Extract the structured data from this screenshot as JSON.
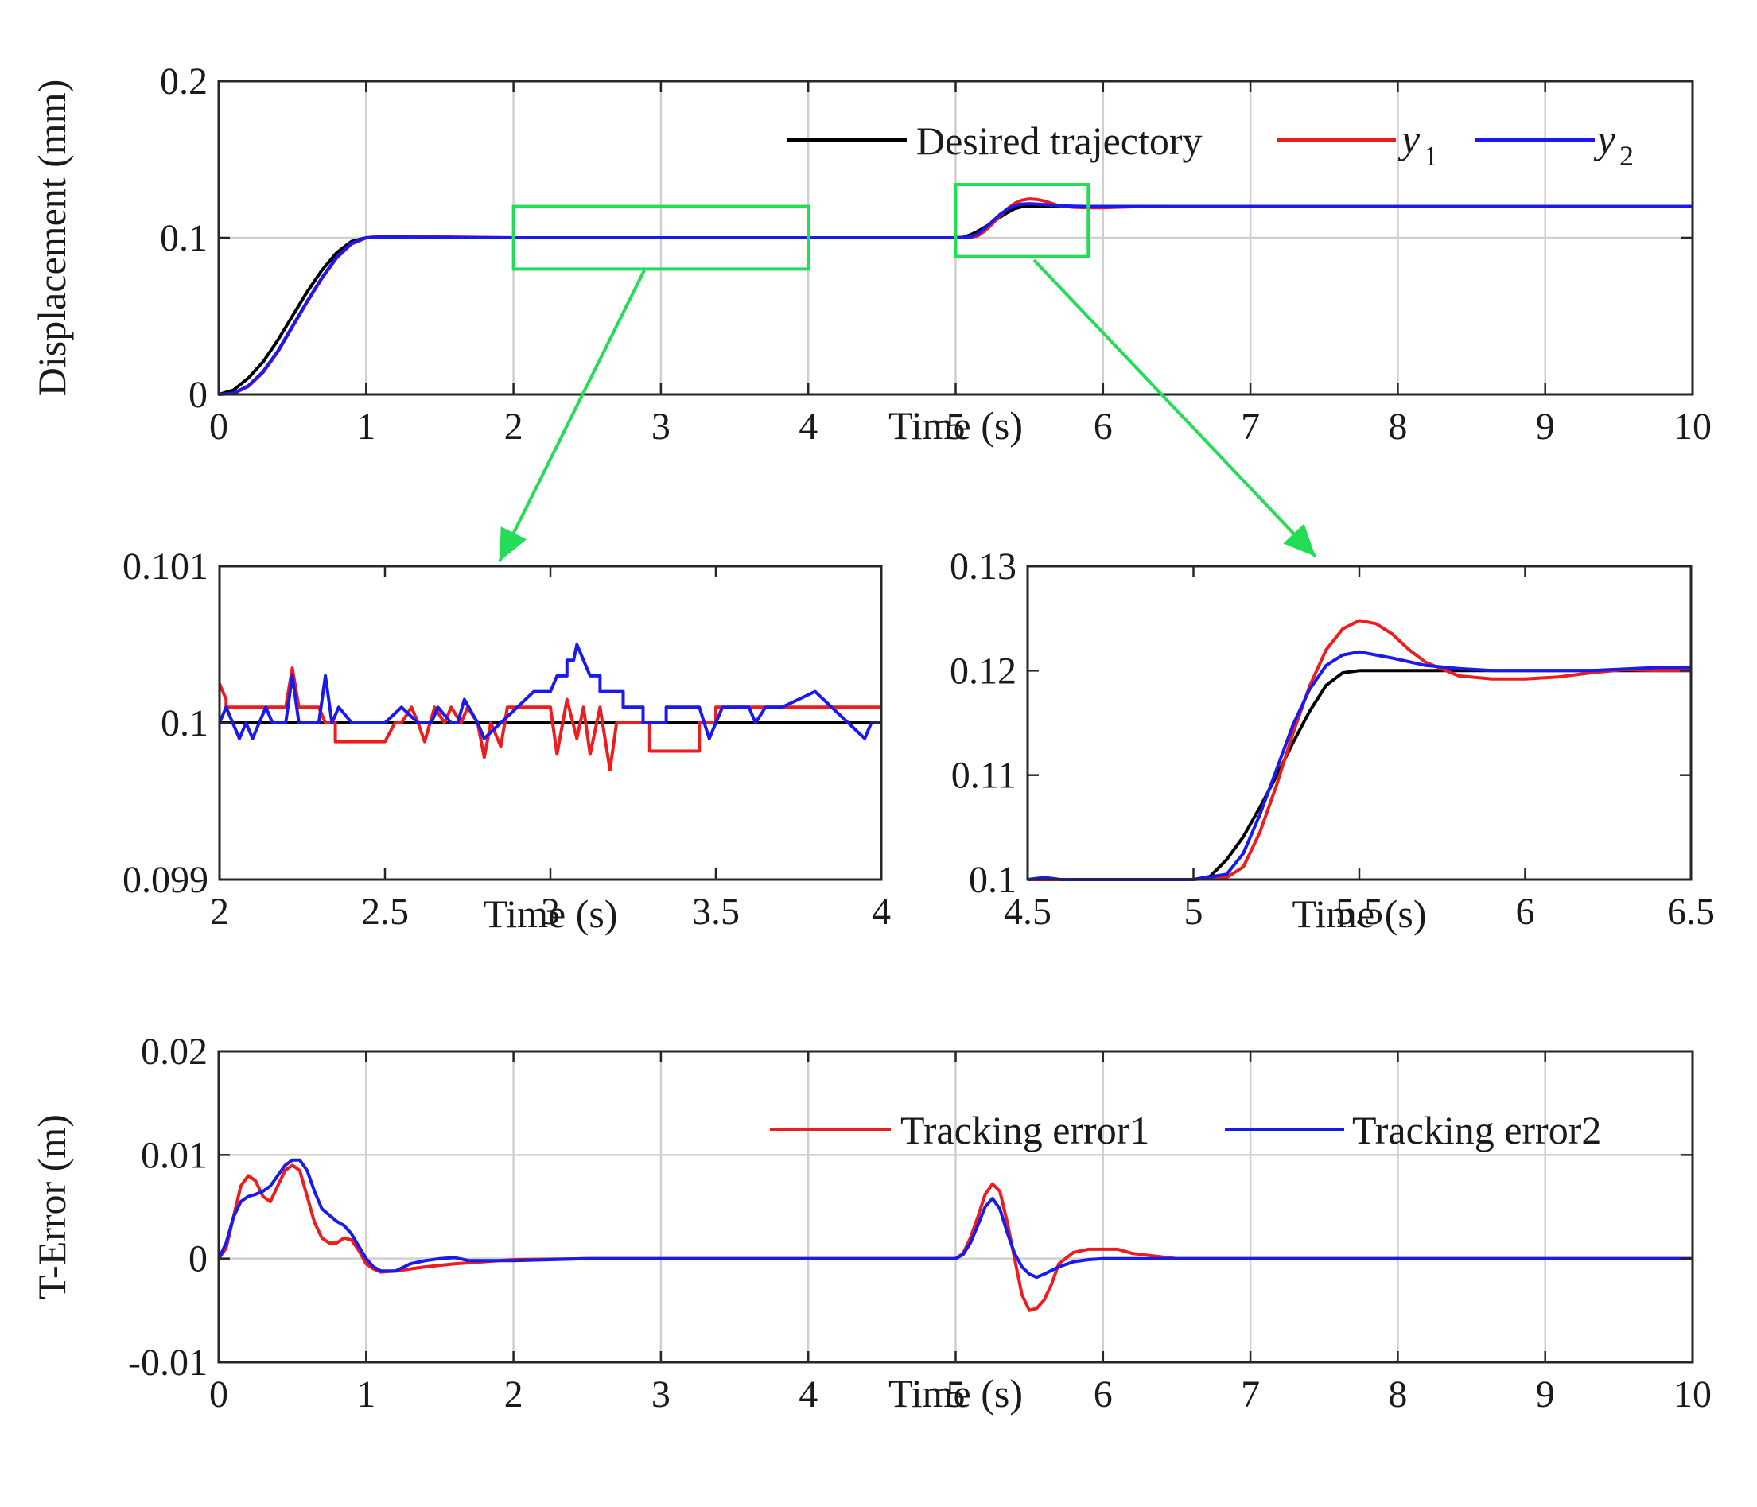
{
  "colors": {
    "desired": "#000000",
    "y1": "#ee1c1c",
    "y2": "#1a1aee",
    "zoom": "#22dd55"
  },
  "chart_data": [
    {
      "id": "main",
      "type": "line",
      "xlabel": "Time (s)",
      "ylabel": "Displacement (mm)",
      "xlim": [
        0,
        10
      ],
      "ylim": [
        0,
        0.2
      ],
      "xticks": [
        "0",
        "1",
        "2",
        "3",
        "4",
        "5",
        "6",
        "7",
        "8",
        "9",
        "10"
      ],
      "yticks": [
        "0",
        "0.1",
        "0.2"
      ],
      "grid": true,
      "legend": {
        "position": "top-right",
        "entries": [
          {
            "label": "Desired trajectory",
            "sym": "",
            "sub": ""
          },
          {
            "label": "",
            "sym": "y",
            "sub": "1"
          },
          {
            "label": "",
            "sym": "y",
            "sub": "2"
          }
        ]
      },
      "zoom_boxes": [
        {
          "x": [
            2,
            4
          ],
          "y": [
            0.08,
            0.12
          ]
        },
        {
          "x": [
            5,
            5.9
          ],
          "y": [
            0.088,
            0.134
          ]
        }
      ],
      "series": [
        {
          "name": "Desired trajectory",
          "x": [
            0,
            0.1,
            0.2,
            0.3,
            0.4,
            0.5,
            0.6,
            0.7,
            0.8,
            0.9,
            1.0,
            2,
            3,
            4,
            5,
            5.05,
            5.1,
            5.15,
            5.2,
            5.25,
            5.3,
            5.35,
            5.4,
            5.45,
            5.5,
            10
          ],
          "y": [
            0,
            0.0028,
            0.0104,
            0.0207,
            0.0345,
            0.05,
            0.0655,
            0.0793,
            0.0904,
            0.0976,
            0.1,
            0.1,
            0.1,
            0.1,
            0.1,
            0.1003,
            0.1019,
            0.1041,
            0.1069,
            0.1099,
            0.1131,
            0.1161,
            0.1186,
            0.1198,
            0.12,
            0.12
          ]
        },
        {
          "name": "y1",
          "x": [
            0,
            0.1,
            0.2,
            0.3,
            0.4,
            0.5,
            0.6,
            0.7,
            0.8,
            0.9,
            1.0,
            1.1,
            2,
            3,
            4,
            5,
            5.1,
            5.15,
            5.2,
            5.25,
            5.3,
            5.35,
            5.4,
            5.45,
            5.5,
            5.55,
            5.6,
            5.7,
            5.8,
            5.9,
            6.0,
            6.2,
            6.5,
            10
          ],
          "y": [
            0,
            0.0005,
            0.005,
            0.014,
            0.027,
            0.043,
            0.059,
            0.074,
            0.087,
            0.096,
            0.1,
            0.101,
            0.1,
            0.1,
            0.1,
            0.1,
            0.1003,
            0.1012,
            0.1045,
            0.109,
            0.114,
            0.1185,
            0.122,
            0.124,
            0.1248,
            0.1245,
            0.1235,
            0.1205,
            0.1195,
            0.1192,
            0.1192,
            0.1198,
            0.12,
            0.12
          ]
        },
        {
          "name": "y2",
          "x": [
            0,
            0.1,
            0.2,
            0.3,
            0.4,
            0.5,
            0.6,
            0.7,
            0.8,
            0.9,
            1.0,
            1.1,
            2,
            3,
            4,
            5,
            5.1,
            5.15,
            5.2,
            5.25,
            5.3,
            5.35,
            5.4,
            5.45,
            5.5,
            5.55,
            5.6,
            5.7,
            5.8,
            5.9,
            6.0,
            6.5,
            10
          ],
          "y": [
            0,
            0.0008,
            0.0055,
            0.0145,
            0.0275,
            0.0435,
            0.0595,
            0.0745,
            0.0875,
            0.0965,
            0.1,
            0.1005,
            0.1,
            0.1,
            0.1,
            0.1,
            0.1005,
            0.1025,
            0.1062,
            0.1105,
            0.1148,
            0.1182,
            0.1205,
            0.1215,
            0.1218,
            0.1215,
            0.1212,
            0.1205,
            0.1202,
            0.12,
            0.12,
            0.12,
            0.12
          ]
        }
      ]
    },
    {
      "id": "zoom1",
      "type": "line",
      "xlabel": "Time (s)",
      "ylabel": "",
      "xlim": [
        2,
        4
      ],
      "ylim": [
        0.099,
        0.101
      ],
      "xticks": [
        "2",
        "2.5",
        "3",
        "3.5",
        "4"
      ],
      "yticks": [
        "0.099",
        "0.1",
        "0.101"
      ],
      "grid": false,
      "series": [
        {
          "name": "Desired trajectory",
          "x": [
            2,
            4
          ],
          "y": [
            0.1,
            0.1
          ]
        },
        {
          "name": "y1",
          "x": [
            2,
            2.02,
            2.02,
            2.1,
            2.2,
            2.22,
            2.24,
            2.3,
            2.32,
            2.34,
            2.35,
            2.35,
            2.5,
            2.53,
            2.55,
            2.58,
            2.6,
            2.62,
            2.65,
            2.68,
            2.7,
            2.73,
            2.75,
            2.78,
            2.8,
            2.82,
            2.85,
            2.87,
            2.9,
            2.95,
            3.0,
            3.02,
            3.05,
            3.08,
            3.1,
            3.12,
            3.15,
            3.18,
            3.2,
            3.3,
            3.3,
            3.45,
            3.45,
            3.5,
            3.5,
            3.65,
            3.7,
            3.8,
            4
          ],
          "y": [
            0.10025,
            0.10015,
            0.1001,
            0.1001,
            0.1001,
            0.10035,
            0.1001,
            0.1001,
            0.1,
            0.1,
            0.1,
            0.09988,
            0.09988,
            0.1,
            0.1,
            0.1001,
            0.1,
            0.09988,
            0.1001,
            0.1,
            0.1001,
            0.1,
            0.1001,
            0.1,
            0.09978,
            0.1,
            0.09985,
            0.1001,
            0.1001,
            0.1001,
            0.1001,
            0.0998,
            0.10015,
            0.0999,
            0.1001,
            0.0998,
            0.1001,
            0.0997,
            0.1,
            0.1,
            0.09982,
            0.09982,
            0.1,
            0.1,
            0.1001,
            0.1001,
            0.1001,
            0.1001,
            0.1001
          ]
        },
        {
          "name": "y2",
          "x": [
            2,
            2.02,
            2.04,
            2.06,
            2.08,
            2.1,
            2.12,
            2.14,
            2.16,
            2.2,
            2.22,
            2.24,
            2.3,
            2.32,
            2.34,
            2.36,
            2.4,
            2.42,
            2.5,
            2.55,
            2.6,
            2.64,
            2.66,
            2.7,
            2.72,
            2.74,
            2.78,
            2.8,
            2.85,
            2.9,
            2.95,
            3.0,
            3.02,
            3.05,
            3.05,
            3.07,
            3.08,
            3.1,
            3.12,
            3.15,
            3.15,
            3.22,
            3.22,
            3.28,
            3.28,
            3.35,
            3.35,
            3.45,
            3.48,
            3.5,
            3.52,
            3.6,
            3.62,
            3.65,
            3.7,
            3.8,
            3.85,
            3.9,
            3.95,
            3.97,
            4
          ],
          "y": [
            0.1,
            0.1001,
            0.1,
            0.0999,
            0.1,
            0.0999,
            0.1,
            0.1001,
            0.1,
            0.1,
            0.1003,
            0.1,
            0.1,
            0.1003,
            0.1,
            0.1001,
            0.1,
            0.1,
            0.1,
            0.1001,
            0.1,
            0.1,
            0.1001,
            0.1,
            0.1,
            0.10015,
            0.1,
            0.0999,
            0.1,
            0.1001,
            0.1002,
            0.1002,
            0.1003,
            0.1003,
            0.1004,
            0.1004,
            0.1005,
            0.1004,
            0.1003,
            0.1003,
            0.1002,
            0.1002,
            0.1001,
            0.1001,
            0.1,
            0.1,
            0.1001,
            0.1001,
            0.0999,
            0.1,
            0.1001,
            0.1001,
            0.1,
            0.1001,
            0.1001,
            0.1002,
            0.1001,
            0.1,
            0.0999,
            0.1,
            0.1
          ]
        }
      ]
    },
    {
      "id": "zoom2",
      "type": "line",
      "xlabel": "Time (s)",
      "ylabel": "",
      "xlim": [
        4.5,
        6.5
      ],
      "ylim": [
        0.1,
        0.13
      ],
      "xticks": [
        "4.5",
        "5",
        "5.5",
        "6",
        "6.5"
      ],
      "yticks": [
        "0.1",
        "0.11",
        "0.12",
        "0.13"
      ],
      "grid": false,
      "series": [
        {
          "name": "Desired trajectory",
          "x": [
            4.5,
            5.0,
            5.05,
            5.1,
            5.15,
            5.2,
            5.25,
            5.3,
            5.35,
            5.4,
            5.45,
            5.5,
            6.5
          ],
          "y": [
            0.1,
            0.1,
            0.1003,
            0.1019,
            0.1041,
            0.1069,
            0.1099,
            0.1131,
            0.1161,
            0.1186,
            0.1198,
            0.12,
            0.12
          ]
        },
        {
          "name": "y1",
          "x": [
            4.5,
            4.6,
            5.0,
            5.1,
            5.15,
            5.2,
            5.25,
            5.3,
            5.35,
            5.4,
            5.45,
            5.5,
            5.55,
            5.6,
            5.65,
            5.7,
            5.8,
            5.9,
            6.0,
            6.1,
            6.2,
            6.3,
            6.4,
            6.5
          ],
          "y": [
            0.1,
            0.1,
            0.1,
            0.1002,
            0.1012,
            0.1045,
            0.109,
            0.114,
            0.1185,
            0.122,
            0.124,
            0.1248,
            0.1245,
            0.1235,
            0.122,
            0.1208,
            0.1195,
            0.1192,
            0.1192,
            0.1194,
            0.1198,
            0.1201,
            0.12,
            0.12
          ]
        },
        {
          "name": "y2",
          "x": [
            4.5,
            4.55,
            4.6,
            5.0,
            5.1,
            5.15,
            5.2,
            5.25,
            5.3,
            5.35,
            5.4,
            5.45,
            5.5,
            5.55,
            5.6,
            5.7,
            5.8,
            5.9,
            6.0,
            6.2,
            6.4,
            6.5
          ],
          "y": [
            0.1,
            0.1002,
            0.1,
            0.1,
            0.1005,
            0.1025,
            0.1062,
            0.1105,
            0.1148,
            0.1182,
            0.1205,
            0.1215,
            0.1218,
            0.1215,
            0.1212,
            0.1205,
            0.1202,
            0.12,
            0.12,
            0.12,
            0.1203,
            0.1203
          ]
        }
      ]
    },
    {
      "id": "error",
      "type": "line",
      "xlabel": "Time (s)",
      "ylabel": "T-Error (m)",
      "xlim": [
        0,
        10
      ],
      "ylim": [
        -0.01,
        0.02
      ],
      "xticks": [
        "0",
        "1",
        "2",
        "3",
        "4",
        "5",
        "6",
        "7",
        "8",
        "9",
        "10"
      ],
      "yticks": [
        "-0.01",
        "0",
        "0.01",
        "0.02"
      ],
      "grid": true,
      "legend": {
        "position": "top-right",
        "entries": [
          {
            "label": "Tracking error1",
            "sym": "",
            "sub": ""
          },
          {
            "label": "Tracking error2",
            "sym": "",
            "sub": ""
          }
        ]
      },
      "series": [
        {
          "name": "Tracking error1",
          "x": [
            0,
            0.05,
            0.1,
            0.15,
            0.2,
            0.25,
            0.3,
            0.35,
            0.4,
            0.45,
            0.5,
            0.55,
            0.6,
            0.65,
            0.7,
            0.75,
            0.8,
            0.85,
            0.9,
            0.95,
            1.0,
            1.05,
            1.1,
            1.2,
            1.4,
            1.6,
            1.8,
            2.0,
            2.5,
            3.0,
            3.5,
            4.0,
            4.5,
            5.0,
            5.05,
            5.1,
            5.15,
            5.2,
            5.25,
            5.3,
            5.35,
            5.4,
            5.45,
            5.5,
            5.55,
            5.6,
            5.65,
            5.7,
            5.8,
            5.9,
            6.0,
            6.1,
            6.2,
            6.5,
            7,
            8,
            9,
            10
          ],
          "y": [
            0,
            0.001,
            0.004,
            0.007,
            0.008,
            0.0075,
            0.006,
            0.0055,
            0.007,
            0.0085,
            0.009,
            0.0085,
            0.006,
            0.0035,
            0.002,
            0.0015,
            0.0015,
            0.002,
            0.0018,
            0.0008,
            -0.0005,
            -0.001,
            -0.0013,
            -0.0012,
            -0.0008,
            -0.0005,
            -0.0003,
            -0.0001,
            0,
            0,
            0,
            0,
            0,
            0,
            0.0005,
            0.002,
            0.004,
            0.0062,
            0.0072,
            0.0065,
            0.0035,
            0,
            -0.0035,
            -0.005,
            -0.0048,
            -0.004,
            -0.0025,
            -0.0005,
            0.0006,
            0.0009,
            0.0009,
            0.0009,
            0.0005,
            0,
            0,
            0,
            0,
            0
          ]
        },
        {
          "name": "Tracking error2",
          "x": [
            0,
            0.05,
            0.1,
            0.15,
            0.2,
            0.25,
            0.3,
            0.35,
            0.4,
            0.45,
            0.5,
            0.55,
            0.6,
            0.65,
            0.7,
            0.75,
            0.8,
            0.85,
            0.9,
            0.95,
            1.0,
            1.05,
            1.1,
            1.2,
            1.3,
            1.4,
            1.5,
            1.6,
            1.7,
            2.0,
            2.5,
            3.0,
            3.5,
            4.0,
            4.5,
            5.0,
            5.05,
            5.1,
            5.15,
            5.2,
            5.25,
            5.3,
            5.35,
            5.4,
            5.45,
            5.5,
            5.55,
            5.6,
            5.7,
            5.8,
            5.9,
            6.0,
            6.5,
            7,
            8,
            9,
            10
          ],
          "y": [
            0,
            0.0015,
            0.004,
            0.0055,
            0.006,
            0.0062,
            0.0065,
            0.007,
            0.008,
            0.009,
            0.0095,
            0.0095,
            0.0085,
            0.0065,
            0.0048,
            0.0042,
            0.0036,
            0.0032,
            0.0024,
            0.0012,
            0,
            -0.0008,
            -0.0012,
            -0.0012,
            -0.0005,
            -0.0002,
            0,
            0.0001,
            -0.0002,
            -0.0002,
            0,
            0,
            0,
            0,
            0,
            0,
            0.0004,
            0.0015,
            0.0032,
            0.005,
            0.0058,
            0.0048,
            0.0025,
            0.0005,
            -0.0008,
            -0.0015,
            -0.0018,
            -0.0015,
            -0.0008,
            -0.0003,
            -0.0001,
            0,
            0,
            0,
            0,
            0,
            0
          ]
        }
      ]
    }
  ]
}
